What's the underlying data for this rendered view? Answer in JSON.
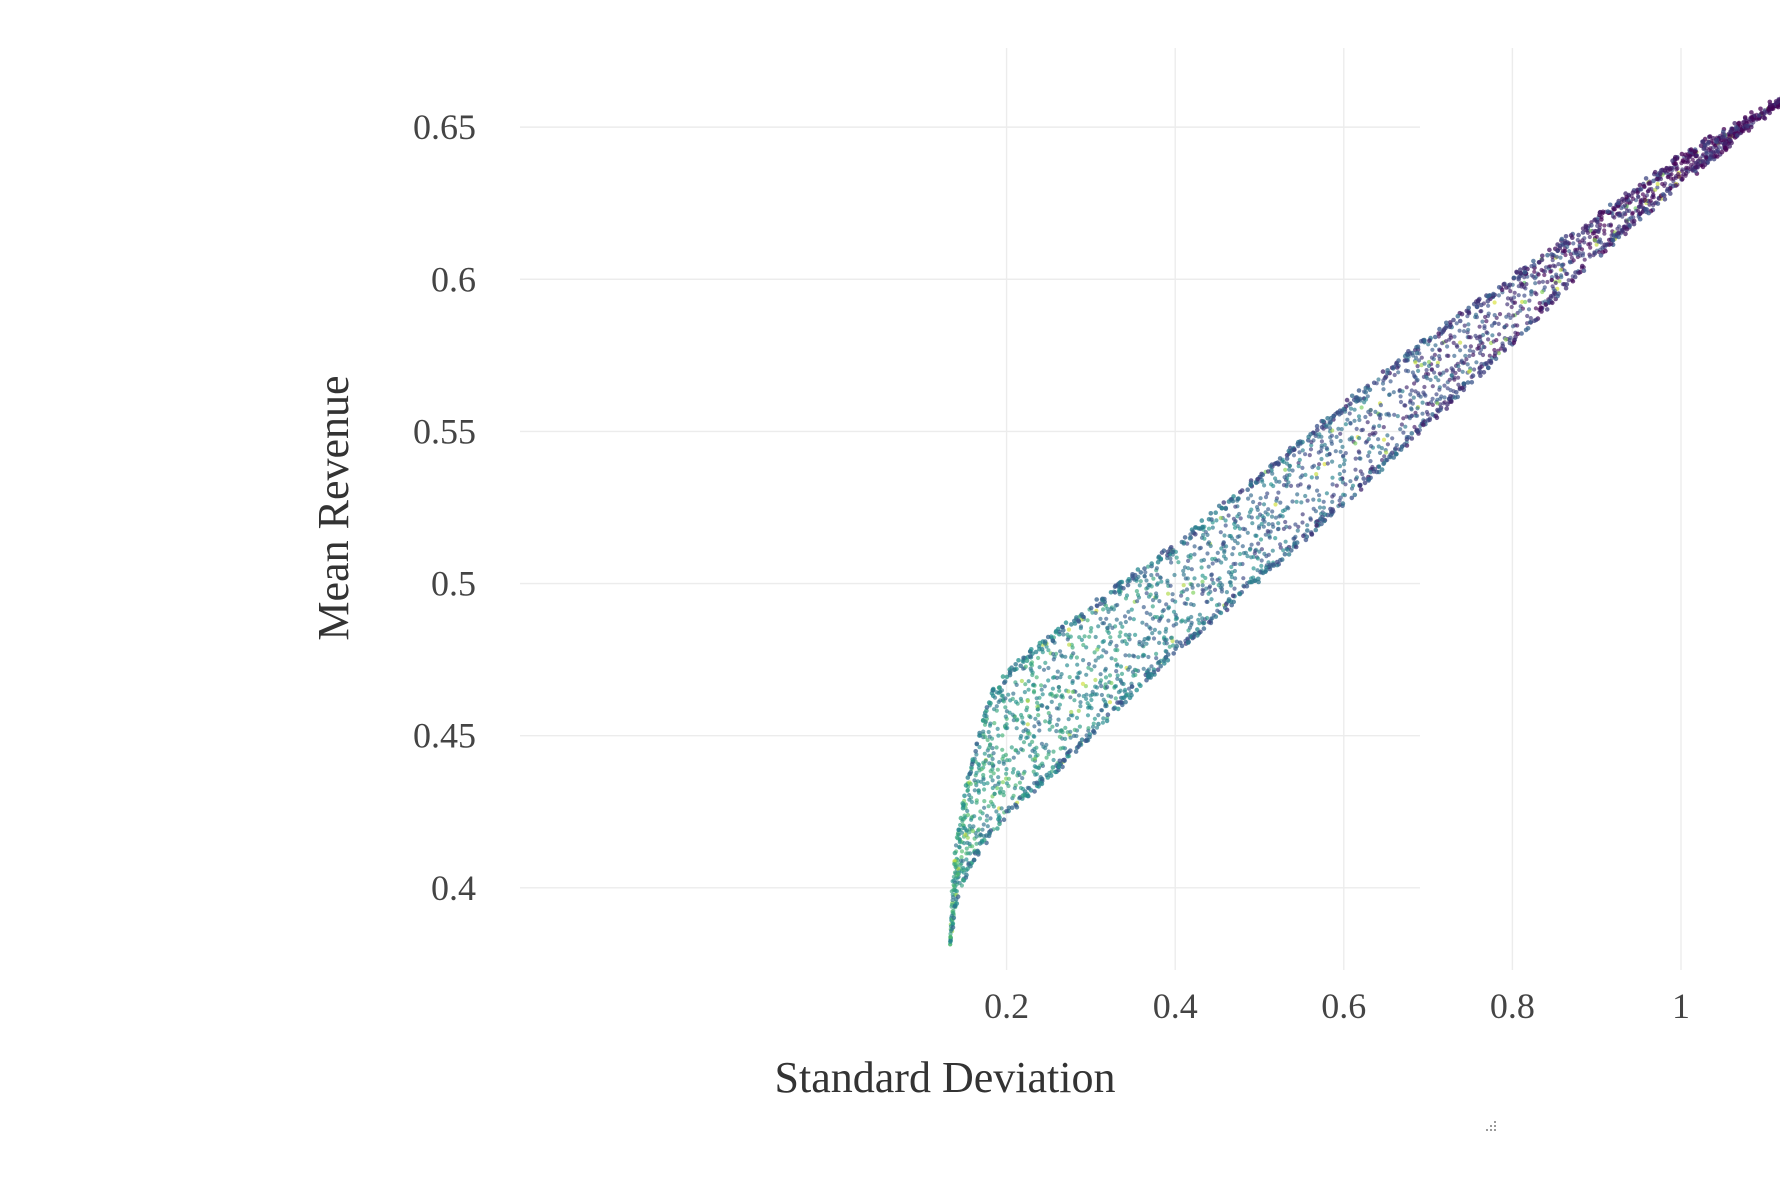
{
  "chart_data": {
    "type": "scatter",
    "xlabel": "Standard Deviation",
    "ylabel": "Mean Revenue",
    "xlim": [
      0.0,
      1.2
    ],
    "ylim": [
      0.373,
      0.676
    ],
    "x_ticks": [
      {
        "value": 0.2,
        "label": "0.2"
      },
      {
        "value": 0.4,
        "label": "0.4"
      },
      {
        "value": 0.6,
        "label": "0.6"
      },
      {
        "value": 0.8,
        "label": "0.8"
      },
      {
        "value": 1.0,
        "label": "1"
      }
    ],
    "y_ticks": [
      {
        "value": 0.4,
        "label": "0.4"
      },
      {
        "value": 0.45,
        "label": "0.45"
      },
      {
        "value": 0.5,
        "label": "0.5"
      },
      {
        "value": 0.55,
        "label": "0.55"
      },
      {
        "value": 0.6,
        "label": "0.6"
      },
      {
        "value": 0.65,
        "label": "0.65"
      }
    ],
    "grid": true,
    "legend": "none",
    "colorscale": [
      "#440154",
      "#3b528b",
      "#21908d",
      "#5dc963",
      "#fde725"
    ],
    "point_opacity": 0.65,
    "point_count_approx": 2400,
    "frontier_points": [
      {
        "x": 0.133,
        "y": 0.381
      },
      {
        "x": 0.14,
        "y": 0.395
      },
      {
        "x": 0.16,
        "y": 0.41
      },
      {
        "x": 0.2,
        "y": 0.425
      },
      {
        "x": 0.25,
        "y": 0.437
      },
      {
        "x": 0.3,
        "y": 0.45
      },
      {
        "x": 0.35,
        "y": 0.465
      },
      {
        "x": 0.4,
        "y": 0.478
      },
      {
        "x": 0.45,
        "y": 0.49
      },
      {
        "x": 0.5,
        "y": 0.502
      },
      {
        "x": 0.6,
        "y": 0.527
      },
      {
        "x": 0.7,
        "y": 0.553
      },
      {
        "x": 0.8,
        "y": 0.58
      },
      {
        "x": 0.9,
        "y": 0.608
      },
      {
        "x": 1.0,
        "y": 0.632
      },
      {
        "x": 1.125,
        "y": 0.66
      }
    ],
    "upper_envelope_points": [
      {
        "x": 0.133,
        "y": 0.381
      },
      {
        "x": 0.135,
        "y": 0.4
      },
      {
        "x": 0.14,
        "y": 0.415
      },
      {
        "x": 0.15,
        "y": 0.43
      },
      {
        "x": 0.165,
        "y": 0.448
      },
      {
        "x": 0.185,
        "y": 0.465
      },
      {
        "x": 0.22,
        "y": 0.475
      },
      {
        "x": 0.3,
        "y": 0.492
      },
      {
        "x": 0.4,
        "y": 0.512
      },
      {
        "x": 0.5,
        "y": 0.535
      },
      {
        "x": 0.6,
        "y": 0.558
      },
      {
        "x": 0.7,
        "y": 0.58
      },
      {
        "x": 0.8,
        "y": 0.6
      },
      {
        "x": 0.9,
        "y": 0.62
      },
      {
        "x": 1.0,
        "y": 0.64
      },
      {
        "x": 1.125,
        "y": 0.66
      }
    ]
  }
}
